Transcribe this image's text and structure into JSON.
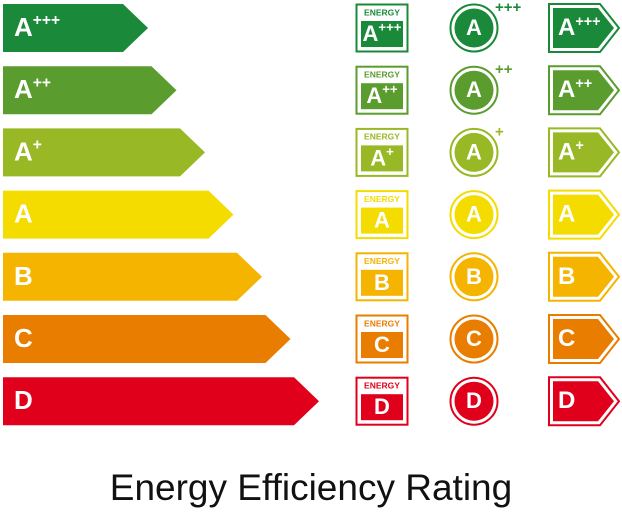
{
  "ratings": [
    {
      "letter": "A",
      "plus": "+++",
      "color": "#1a8a3a"
    },
    {
      "letter": "A",
      "plus": "++",
      "color": "#5a9c2e"
    },
    {
      "letter": "A",
      "plus": "+",
      "color": "#98b826"
    },
    {
      "letter": "A",
      "color": "#f5dc00"
    },
    {
      "letter": "B",
      "color": "#f5b400"
    },
    {
      "letter": "C",
      "color": "#e97d00"
    },
    {
      "letter": "D",
      "color": "#e0001b"
    }
  ],
  "badge_label": "ENERGY",
  "title": "Energy Efficiency Rating"
}
